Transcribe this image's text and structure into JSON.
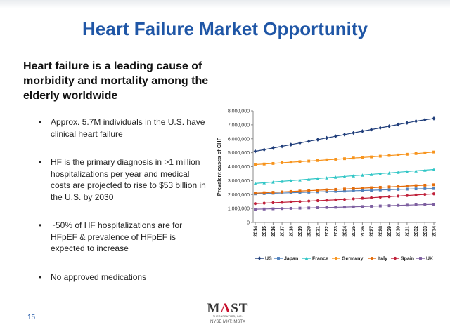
{
  "slide": {
    "title": "Heart Failure Market Opportunity",
    "headline": "Heart failure is a leading cause of morbidity and mortality among the elderly worldwide",
    "bullets": [
      "Approx. 5.7M individuals in the U.S. have clinical heart failure",
      "HF is the primary diagnosis in >1 million hospitalizations per year and medical costs are projected to rise to $53 billion in the U.S. by 2030",
      "~50% of HF hospitalizations are for HFpEF & prevalence of HFpEF is expected to increase",
      "No approved medications"
    ],
    "page_number": "15"
  },
  "logo": {
    "text_m": "M",
    "text_a": "A",
    "text_st": "ST",
    "subtitle": "THERAPEUTICS, INC.",
    "ticker": "NYSE MKT:  MSTX"
  },
  "colors": {
    "title": "#1f56a6",
    "US": "#1f3d7a",
    "Japan": "#4f81bd",
    "France": "#31c6c6",
    "Germany": "#f7941d",
    "Italy": "#e46c0a",
    "Spain": "#c0213a",
    "UK": "#7d5fa0"
  },
  "chart_data": {
    "type": "line",
    "ylabel": "Prevalent cases of CHF",
    "xlabel": "",
    "x": [
      "2014",
      "2015",
      "2016",
      "2017",
      "2018",
      "2019",
      "2020",
      "2021",
      "2022",
      "2023",
      "2024",
      "2025",
      "2026",
      "2027",
      "2028",
      "2029",
      "2030",
      "2031",
      "2032",
      "2033",
      "2034"
    ],
    "yticks": [
      "0",
      "1,000,000",
      "2,000,000",
      "3,000,000",
      "4,000,000",
      "5,000,000",
      "6,000,000",
      "7,000,000",
      "8,000,000"
    ],
    "ylim": [
      0,
      8000000
    ],
    "grid": false,
    "legend": "bottom",
    "series": [
      {
        "name": "US",
        "values": [
          5100000,
          5220000,
          5340000,
          5460000,
          5580000,
          5700000,
          5820000,
          5940000,
          6060000,
          6180000,
          6300000,
          6420000,
          6540000,
          6660000,
          6780000,
          6900000,
          7020000,
          7140000,
          7260000,
          7360000,
          7450000
        ]
      },
      {
        "name": "Japan",
        "values": [
          2050000,
          2070000,
          2090000,
          2110000,
          2130000,
          2150000,
          2170000,
          2190000,
          2210000,
          2230000,
          2250000,
          2270000,
          2290000,
          2310000,
          2330000,
          2350000,
          2370000,
          2390000,
          2410000,
          2420000,
          2430000
        ]
      },
      {
        "name": "France",
        "values": [
          2800000,
          2850000,
          2900000,
          2950000,
          3000000,
          3050000,
          3100000,
          3150000,
          3200000,
          3250000,
          3300000,
          3350000,
          3400000,
          3450000,
          3500000,
          3550000,
          3600000,
          3650000,
          3700000,
          3750000,
          3800000
        ]
      },
      {
        "name": "Germany",
        "values": [
          4150000,
          4190000,
          4230000,
          4280000,
          4320000,
          4360000,
          4400000,
          4440000,
          4490000,
          4530000,
          4570000,
          4620000,
          4660000,
          4700000,
          4750000,
          4800000,
          4840000,
          4890000,
          4940000,
          4990000,
          5050000
        ]
      },
      {
        "name": "Italy",
        "values": [
          2100000,
          2130000,
          2160000,
          2190000,
          2220000,
          2250000,
          2280000,
          2310000,
          2340000,
          2370000,
          2400000,
          2430000,
          2460000,
          2490000,
          2520000,
          2550000,
          2580000,
          2610000,
          2640000,
          2670000,
          2700000
        ]
      },
      {
        "name": "Spain",
        "values": [
          1350000,
          1380000,
          1410000,
          1440000,
          1470000,
          1500000,
          1530000,
          1560000,
          1590000,
          1620000,
          1650000,
          1690000,
          1730000,
          1770000,
          1810000,
          1850000,
          1890000,
          1930000,
          1970000,
          2010000,
          2050000
        ]
      },
      {
        "name": "UK",
        "values": [
          950000,
          965000,
          980000,
          995000,
          1010000,
          1025000,
          1040000,
          1055000,
          1070000,
          1085000,
          1100000,
          1120000,
          1140000,
          1160000,
          1180000,
          1200000,
          1220000,
          1240000,
          1260000,
          1280000,
          1300000
        ]
      }
    ],
    "markers": {
      "US": "diamond",
      "Japan": "square",
      "France": "triangle",
      "Germany": "square",
      "Italy": "square",
      "Spain": "circle",
      "UK": "square"
    }
  }
}
